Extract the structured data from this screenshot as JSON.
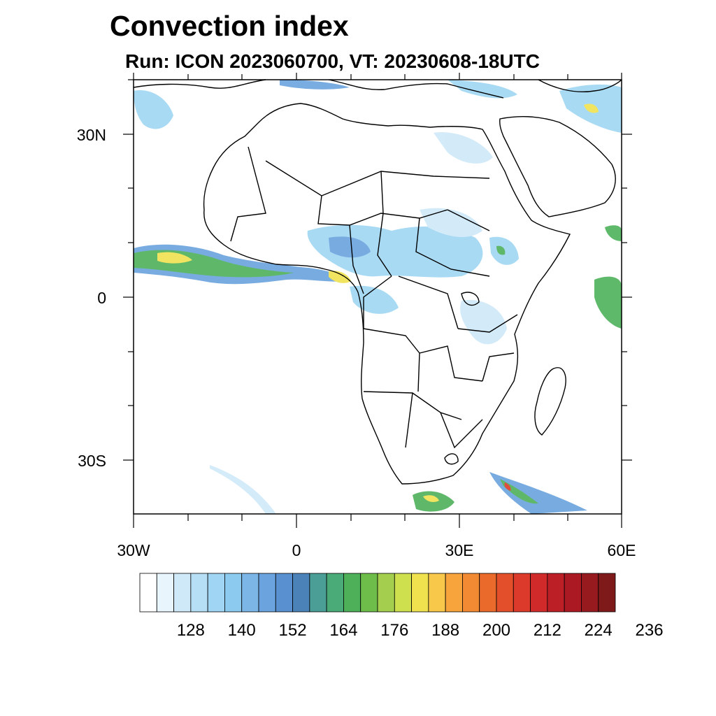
{
  "title": "Convection index",
  "subtitle": "Run: ICON 2023060700,  VT: 20230608-18UTC",
  "lat_labels": [
    "30N",
    "0",
    "30S"
  ],
  "lon_labels": [
    "30W",
    "0",
    "30E",
    "60E"
  ],
  "colorbar": {
    "labels": [
      "128",
      "140",
      "152",
      "164",
      "176",
      "188",
      "200",
      "212",
      "224",
      "236"
    ],
    "colors": [
      "#ffffff",
      "#e8f5fc",
      "#cfe9f8",
      "#b6def5",
      "#a0d6f3",
      "#8ccaf0",
      "#7cb6e6",
      "#6aa3dd",
      "#5990cf",
      "#4b83b8",
      "#4a9e95",
      "#4aaa78",
      "#4eb15a",
      "#6ebd4a",
      "#a4cf4e",
      "#cfe04f",
      "#f0e24f",
      "#f7c84a",
      "#f7a43c",
      "#f28a34",
      "#ea6a2c",
      "#e34f2a",
      "#dc3a2b",
      "#d02a2a",
      "#bd1f27",
      "#ab1a22",
      "#961a1e",
      "#7e1a1a"
    ]
  },
  "map": {
    "land_outline_color": "#000000",
    "convection_colors": {
      "light": "#a0d6f3",
      "mid": "#6aa3dd",
      "green": "#4eb15a",
      "yellow": "#f0e24f",
      "red": "#dc3a2b"
    }
  }
}
